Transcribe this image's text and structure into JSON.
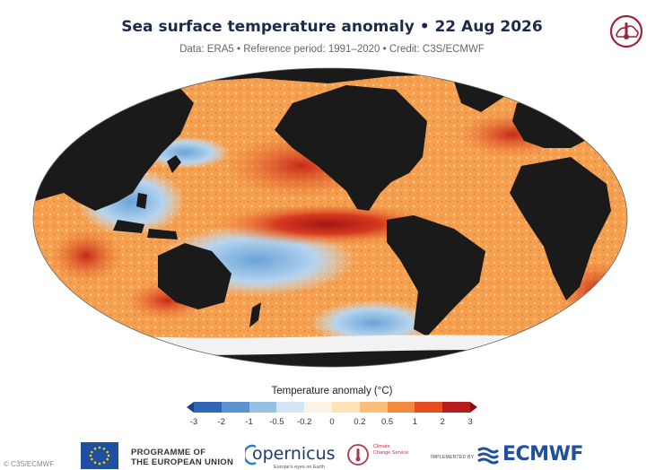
{
  "header": {
    "title": "Sea surface temperature anomaly • 22 Aug 2026",
    "subtitle": "Data: ERA5 • Reference period: 1991–2020 • Credit: C3S/ECMWF"
  },
  "colorbar": {
    "title": "Temperature anomaly (°C)",
    "ticks": [
      "-3",
      "-2",
      "-1",
      "-0.5",
      "-0.2",
      "0",
      "0.2",
      "0.5",
      "1",
      "2",
      "3"
    ],
    "colors": [
      "#1c3f8e",
      "#2f66b6",
      "#5a93d0",
      "#97c0e6",
      "#d3e6f5",
      "#fbf3e6",
      "#fde3b6",
      "#fcbf76",
      "#f68a3c",
      "#e34d1f",
      "#b71c1c",
      "#8b0d14"
    ]
  },
  "map": {
    "land_color": "#1a1a1a",
    "ice_color": "#f2f2f2",
    "ocean_warm": "#f28a3a",
    "ocean_hot": "#c62818",
    "ocean_cool": "#8ab7e0"
  },
  "footer": {
    "eu_line1": "PROGRAMME OF",
    "eu_line2": "THE EUROPEAN UNION",
    "copernicus": "opernicus",
    "copernicus_tagline": "Europe's eyes on Earth",
    "ccs_line1": "Climate",
    "ccs_line2": "Change Service",
    "implemented": "IMPLEMENTED BY",
    "ecmwf": "ECMWF"
  },
  "copyright": "© C3S/ECMWF"
}
